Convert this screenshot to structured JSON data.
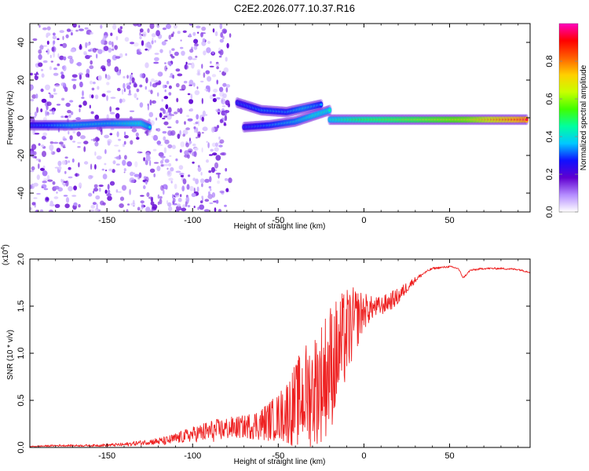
{
  "title": "C2E2.2026.077.10.37.R16",
  "chart_data": [
    {
      "type": "heatmap",
      "title": "C2E2.2026.077.10.37.R16",
      "xlabel": "Height of straight line (km)",
      "ylabel": "Frequency (Hz)",
      "xlim": [
        -195,
        97
      ],
      "ylim": [
        -50,
        50
      ],
      "x_ticks": [
        -150,
        -100,
        -50,
        0,
        50
      ],
      "y_ticks": [
        -40,
        -20,
        0,
        20,
        40
      ],
      "colorbar": {
        "label": "Normalized spectral amplitude",
        "range": [
          0,
          1
        ],
        "ticks": [
          0.0,
          0.2,
          0.4,
          0.6,
          0.8
        ],
        "colormap": [
          "#ffffff",
          "#b48cff",
          "#6000d0",
          "#1010ff",
          "#00c8ff",
          "#00ffa0",
          "#40ff00",
          "#c8ff00",
          "#ffd000",
          "#ff6000",
          "#ff0000",
          "#ff00c0"
        ]
      },
      "features": [
        {
          "name": "noise",
          "x_range": [
            -195,
            -78
          ],
          "intensity": 0.1
        },
        {
          "name": "trace",
          "x": [
            -195,
            -170,
            -150,
            -130,
            -125
          ],
          "freq": [
            -4,
            -4,
            -3,
            -3,
            -5
          ],
          "intensity": [
            0.3,
            0.4,
            0.4,
            0.45,
            0.4
          ]
        },
        {
          "name": "trace",
          "x": [
            -74,
            -60,
            -45,
            -35,
            -25
          ],
          "freq": [
            8,
            4,
            3,
            5,
            7
          ],
          "intensity": [
            0.3,
            0.35,
            0.35,
            0.4,
            0.35
          ]
        },
        {
          "name": "trace",
          "x": [
            -70,
            -55,
            -40,
            -30,
            -20
          ],
          "freq": [
            -5,
            -4,
            -2,
            1,
            4
          ],
          "intensity": [
            0.3,
            0.35,
            0.4,
            0.45,
            0.45
          ]
        },
        {
          "name": "trace",
          "x": [
            -20,
            0,
            20,
            40,
            60,
            80,
            95
          ],
          "freq": [
            -1,
            -1,
            -1,
            -1,
            -1,
            -1,
            -1
          ],
          "intensity": [
            0.45,
            0.55,
            0.6,
            0.65,
            0.7,
            0.85,
            0.95
          ]
        }
      ]
    },
    {
      "type": "line",
      "xlabel": "Height of straight line (km)",
      "ylabel": "SNR (10 * v/v)",
      "y_multiplier": "(x10",
      "y_multiplier_exp": "4",
      "y_multiplier_close": ")",
      "xlim": [
        -195,
        97
      ],
      "ylim": [
        0,
        2.0
      ],
      "x_ticks": [
        -150,
        -100,
        -50,
        0,
        50
      ],
      "y_ticks": [
        "0.0",
        "0.5",
        "1.0",
        "1.5",
        "2.0"
      ],
      "color": "#ee2222",
      "series": [
        {
          "x": [
            -195,
            -180,
            -160,
            -140,
            -125,
            -115,
            -100,
            -90,
            -80,
            -70,
            -60,
            -50,
            -40,
            -35,
            -30,
            -25,
            -20,
            -15,
            -10,
            -5,
            0,
            5,
            10,
            15,
            20,
            25,
            30,
            35,
            40,
            50,
            55,
            58,
            62,
            70,
            80,
            90,
            97
          ],
          "values": [
            0.01,
            0.02,
            0.02,
            0.03,
            0.06,
            0.07,
            0.14,
            0.17,
            0.2,
            0.22,
            0.25,
            0.32,
            0.45,
            0.55,
            0.6,
            0.7,
            0.85,
            1.0,
            1.2,
            1.35,
            1.45,
            1.48,
            1.5,
            1.55,
            1.6,
            1.7,
            1.78,
            1.85,
            1.9,
            1.92,
            1.9,
            1.8,
            1.88,
            1.9,
            1.9,
            1.89,
            1.86
          ],
          "noise_amp": [
            0.005,
            0.01,
            0.01,
            0.02,
            0.03,
            0.05,
            0.08,
            0.12,
            0.12,
            0.12,
            0.18,
            0.25,
            0.45,
            0.55,
            0.6,
            0.65,
            0.7,
            0.6,
            0.5,
            0.35,
            0.2,
            0.12,
            0.1,
            0.1,
            0.09,
            0.06,
            0.03,
            0.015,
            0.012,
            0.01,
            0.01,
            0.01,
            0.01,
            0.01,
            0.01,
            0.01,
            0.01
          ]
        }
      ]
    }
  ]
}
